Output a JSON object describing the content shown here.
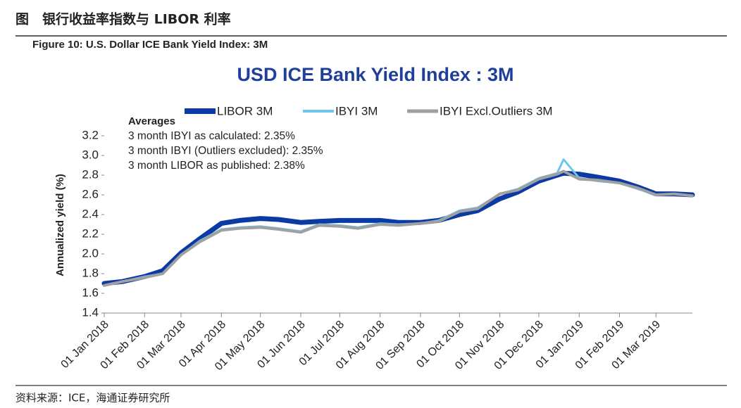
{
  "header": {
    "title": "图　银行收益率指数与 LIBOR 利率",
    "figure": "Figure 10: U.S. Dollar ICE Bank Yield Index: 3M"
  },
  "source": "资料来源：ICE，海通证券研究所",
  "chart_data": {
    "type": "line",
    "title": "USD ICE Bank Yield Index : 3M",
    "y_label": "Annualized yield (%)",
    "annotations": [
      "Averages",
      "3 month IBYI as calculated:  2.35%",
      "3 month IBYI (Outliers excluded):  2.35%",
      "3 month LIBOR as published:  2.38%"
    ],
    "x": [
      "2018-01-01",
      "2018-01-15",
      "2018-02-01",
      "2018-02-15",
      "2018-03-01",
      "2018-03-15",
      "2018-04-01",
      "2018-04-15",
      "2018-05-01",
      "2018-05-15",
      "2018-06-01",
      "2018-06-15",
      "2018-07-01",
      "2018-07-15",
      "2018-08-01",
      "2018-08-15",
      "2018-09-01",
      "2018-09-15",
      "2018-10-01",
      "2018-10-15",
      "2018-11-01",
      "2018-11-15",
      "2018-12-01",
      "2018-12-15",
      "2018-12-20",
      "2019-01-01",
      "2019-01-15",
      "2019-02-01",
      "2019-02-15",
      "2019-03-01",
      "2019-03-15",
      "2019-03-29"
    ],
    "series": [
      {
        "name": "LIBOR 3M",
        "color": "#0b3aa5",
        "width": 7,
        "values": [
          1.7,
          1.72,
          1.77,
          1.83,
          2.01,
          2.15,
          2.31,
          2.34,
          2.36,
          2.35,
          2.32,
          2.33,
          2.34,
          2.34,
          2.34,
          2.32,
          2.32,
          2.34,
          2.4,
          2.44,
          2.56,
          2.63,
          2.74,
          2.8,
          2.82,
          2.81,
          2.78,
          2.74,
          2.68,
          2.61,
          2.61,
          2.6
        ]
      },
      {
        "name": "IBYI 3M",
        "color": "#6ec6ea",
        "width": 3,
        "values": [
          1.68,
          1.72,
          1.77,
          1.8,
          1.99,
          2.13,
          2.25,
          2.27,
          2.28,
          2.26,
          2.23,
          2.3,
          2.29,
          2.27,
          2.31,
          2.3,
          2.31,
          2.34,
          2.44,
          2.47,
          2.61,
          2.66,
          2.77,
          2.82,
          2.96,
          2.77,
          2.74,
          2.72,
          2.66,
          2.6,
          2.61,
          2.59
        ]
      },
      {
        "name": "IBYI Excl.Outliers 3M",
        "color": "#a0a0a0",
        "width": 4,
        "values": [
          1.68,
          1.72,
          1.76,
          1.8,
          1.99,
          2.12,
          2.24,
          2.26,
          2.27,
          2.25,
          2.22,
          2.29,
          2.28,
          2.26,
          2.3,
          2.29,
          2.31,
          2.33,
          2.43,
          2.46,
          2.61,
          2.65,
          2.76,
          2.81,
          2.84,
          2.76,
          2.75,
          2.72,
          2.67,
          2.6,
          2.61,
          2.59
        ]
      }
    ],
    "xlim": [
      "2018-01-01",
      "2019-03-29"
    ],
    "xticks": [
      {
        "value": "2018-01-01",
        "label": "01 Jan 2018"
      },
      {
        "value": "2018-02-01",
        "label": "01 Feb 2018"
      },
      {
        "value": "2018-03-01",
        "label": "01 Mar 2018"
      },
      {
        "value": "2018-04-01",
        "label": "01 Apr 2018"
      },
      {
        "value": "2018-05-01",
        "label": "01 May 2018"
      },
      {
        "value": "2018-06-01",
        "label": "01 Jun 2018"
      },
      {
        "value": "2018-07-01",
        "label": "01 Jul 2018"
      },
      {
        "value": "2018-08-01",
        "label": "01 Aug 2018"
      },
      {
        "value": "2018-09-01",
        "label": "01 Sep 2018"
      },
      {
        "value": "2018-10-01",
        "label": "01 Oct 2018"
      },
      {
        "value": "2018-11-01",
        "label": "01 Nov 2018"
      },
      {
        "value": "2018-12-01",
        "label": "01 Dec 2018"
      },
      {
        "value": "2019-01-01",
        "label": "01 Jan 2019"
      },
      {
        "value": "2019-02-01",
        "label": "01 Feb 2019"
      },
      {
        "value": "2019-03-01",
        "label": "01 Mar 2019"
      }
    ],
    "ylim": [
      1.4,
      3.2
    ],
    "yticks": [
      1.4,
      1.6,
      1.8,
      {
        "value": 2,
        "label": "2.0"
      },
      2.2,
      2.4,
      2.6,
      2.8,
      {
        "value": 3,
        "label": "3.0"
      },
      3.2
    ],
    "grid": false
  }
}
